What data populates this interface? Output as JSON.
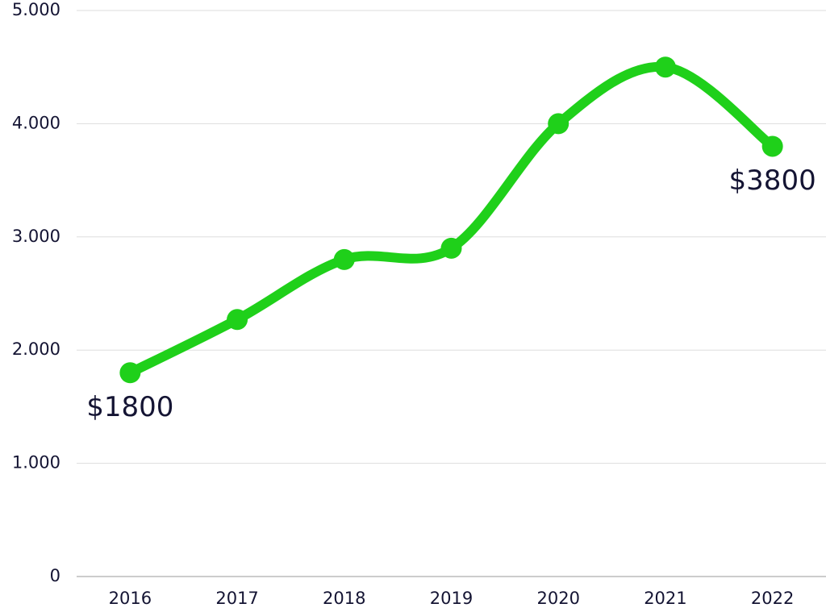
{
  "chart_data": {
    "type": "line",
    "categories": [
      "2016",
      "2017",
      "2018",
      "2019",
      "2020",
      "2021",
      "2022"
    ],
    "values": [
      1800,
      2270,
      2800,
      2900,
      4000,
      4500,
      3800
    ],
    "value_labels": [
      "$1800",
      null,
      null,
      null,
      null,
      null,
      "$3800"
    ],
    "color": "#1fd01a",
    "ylim": [
      0,
      5000
    ],
    "yticks": [
      0,
      {
        "value": 1000,
        "label": "1.000"
      },
      {
        "value": 2000,
        "label": "2.000"
      },
      {
        "value": 3000,
        "label": "3.000"
      },
      {
        "value": 4000,
        "label": "4.000"
      },
      {
        "value": 5000,
        "label": "5.000"
      }
    ],
    "grid": true
  }
}
